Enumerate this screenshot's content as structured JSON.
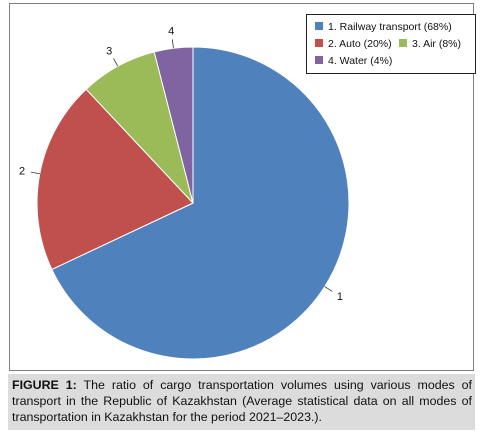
{
  "chart_data": {
    "type": "pie",
    "categories": [
      "1. Railway transport (68%)",
      "2. Auto (20%)",
      "3. Air (8%)",
      "4. Water (4%)"
    ],
    "values": [
      68,
      20,
      8,
      4
    ],
    "slice_labels": [
      "1",
      "2",
      "3",
      "4"
    ],
    "colors": [
      "#4f81bd",
      "#c0504d",
      "#9bbb59",
      "#8064a2"
    ],
    "legend_placement": "top-right",
    "start_angle_deg": 0,
    "direction": "clockwise"
  },
  "caption": {
    "label": "FIGURE 1:",
    "text": " The ratio of cargo transportation volumes using various modes of transport in the Republic of Kazakhstan (Average statistical data on all modes of transportation in Kazakhstan for the period 2021–2023.)."
  }
}
